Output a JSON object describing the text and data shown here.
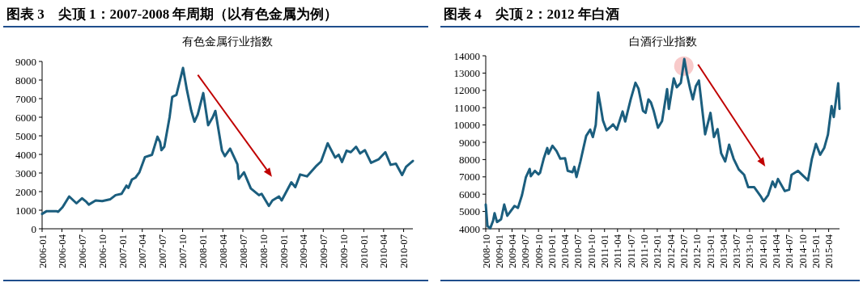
{
  "chart_data": [
    {
      "type": "line",
      "title": "图表 3　尖顶 1：2007-2008 年周期（以有色金属为例）",
      "subtitle": "有色金属行业指数",
      "x": [
        "2006-01-01",
        "2006-01-22",
        "2006-03-07",
        "2006-03-15",
        "2006-04-04",
        "2006-05-04",
        "2006-06-06",
        "2006-07-01",
        "2006-07-21",
        "2006-08-01",
        "2006-09-01",
        "2006-10-01",
        "2006-11-07",
        "2006-12-01",
        "2006-12-28",
        "2007-01-19",
        "2007-01-28",
        "2007-02-13",
        "2007-03-01",
        "2007-03-19",
        "2007-04-13",
        "2007-05-15",
        "2007-06-09",
        "2007-06-21",
        "2007-06-27",
        "2007-07-10",
        "2007-08-03",
        "2007-08-15",
        "2007-09-03",
        "2007-10-03",
        "2007-10-21",
        "2007-11-09",
        "2007-11-24",
        "2007-12-09",
        "2008-01-03",
        "2008-01-25",
        "2008-02-15",
        "2008-02-27",
        "2008-03-28",
        "2008-04-10",
        "2008-05-04",
        "2008-06-06",
        "2008-06-12",
        "2008-07-06",
        "2008-08-06",
        "2008-09-12",
        "2008-09-24",
        "2008-10-27",
        "2008-11-12",
        "2008-12-12",
        "2008-12-24",
        "2009-02-06",
        "2009-02-24",
        "2009-03-18",
        "2009-04-18",
        "2009-06-01",
        "2009-06-21",
        "2009-07-21",
        "2009-08-24",
        "2009-09-09",
        "2009-09-24",
        "2009-10-15",
        "2009-11-03",
        "2009-11-27",
        "2009-12-15",
        "2010-01-06",
        "2010-02-03",
        "2010-03-09",
        "2010-04-09",
        "2010-05-03",
        "2010-05-27",
        "2010-06-24",
        "2010-07-12",
        "2010-08-12"
      ],
      "series": [
        {
          "color": "#1b5e7e",
          "values": [
            800,
            950,
            950,
            910,
            1160,
            1740,
            1370,
            1640,
            1450,
            1300,
            1520,
            1490,
            1590,
            1810,
            1880,
            2320,
            2200,
            2650,
            2750,
            3040,
            3850,
            3980,
            4950,
            4660,
            4230,
            4410,
            6000,
            7090,
            7200,
            8650,
            7450,
            6370,
            5760,
            6150,
            7300,
            5570,
            6000,
            6340,
            4200,
            3910,
            4310,
            3470,
            2680,
            3040,
            2170,
            1810,
            1880,
            1230,
            1520,
            1740,
            1520,
            2500,
            2240,
            2920,
            2820,
            3400,
            3620,
            4600,
            3830,
            3980,
            3590,
            4200,
            4120,
            4410,
            4050,
            4230,
            3550,
            3730,
            4120,
            3440,
            3500,
            2890,
            3330,
            3650
          ]
        }
      ],
      "xlim": [
        "2006-01-01",
        "2010-08-12"
      ],
      "xticks": [
        "2006-01",
        "2006-04",
        "2006-07",
        "2006-10",
        "2007-01",
        "2007-04",
        "2007-07",
        "2007-10",
        "2008-01",
        "2008-04",
        "2008-07",
        "2008-10",
        "2009-01",
        "2009-04",
        "2009-07",
        "2009-10",
        "2010-01",
        "2010-04",
        "2010-07"
      ],
      "ylim": [
        0,
        9000
      ],
      "yticks": [
        0,
        1000,
        2000,
        3000,
        4000,
        5000,
        6000,
        7000,
        8000,
        9000
      ],
      "grid": false
    },
    {
      "type": "line",
      "title": "图表 4　尖顶 2：2012 年白酒",
      "subtitle": "白酒行业指数",
      "x": [
        "2008-10-01",
        "2008-10-13",
        "2008-11-01",
        "2008-11-21",
        "2008-12-01",
        "2008-12-18",
        "2009-01-15",
        "2009-02-06",
        "2009-02-27",
        "2009-04-18",
        "2009-05-12",
        "2009-06-09",
        "2009-07-06",
        "2009-08-01",
        "2009-08-09",
        "2009-09-06",
        "2009-10-01",
        "2009-10-12",
        "2009-11-06",
        "2009-12-01",
        "2009-12-09",
        "2010-01-06",
        "2010-02-03",
        "2010-03-01",
        "2010-04-03",
        "2010-04-21",
        "2010-05-24",
        "2010-06-06",
        "2010-06-21",
        "2010-07-18",
        "2010-08-06",
        "2010-08-27",
        "2010-09-24",
        "2010-10-12",
        "2010-11-01",
        "2010-11-18",
        "2010-12-03",
        "2010-12-21",
        "2011-01-15",
        "2011-02-12",
        "2011-03-01",
        "2011-03-27",
        "2011-05-06",
        "2011-05-24",
        "2011-07-01",
        "2011-08-03",
        "2011-08-24",
        "2011-09-24",
        "2011-10-12",
        "2011-11-01",
        "2011-11-18",
        "2011-12-06",
        "2012-01-06",
        "2012-02-03",
        "2012-03-09",
        "2012-03-21",
        "2012-04-24",
        "2012-05-15",
        "2012-06-12",
        "2012-07-06",
        "2012-07-24",
        "2012-08-15",
        "2012-09-03",
        "2012-09-24",
        "2012-10-15",
        "2012-11-27",
        "2013-01-03",
        "2013-01-27",
        "2013-02-21",
        "2013-03-18",
        "2013-04-15",
        "2013-05-12",
        "2013-06-12",
        "2013-07-18",
        "2013-08-24",
        "2013-09-21",
        "2013-11-01",
        "2013-12-15",
        "2014-01-06",
        "2014-02-06",
        "2014-03-09",
        "2014-03-27",
        "2014-04-15",
        "2014-06-01",
        "2014-07-01",
        "2014-07-18",
        "2014-09-01",
        "2014-10-09",
        "2014-11-09",
        "2014-12-06",
        "2015-01-03",
        "2015-02-01",
        "2015-03-01",
        "2015-03-27",
        "2015-04-21",
        "2015-05-06",
        "2015-05-21",
        "2015-06-06",
        "2015-06-15"
      ],
      "series": [
        {
          "color": "#1b5e7e",
          "values": [
            5400,
            4160,
            4030,
            4470,
            4900,
            4390,
            4550,
            5400,
            4750,
            5320,
            5210,
            5950,
            6990,
            7460,
            7040,
            7350,
            7150,
            7240,
            8050,
            8670,
            8330,
            8800,
            8490,
            8050,
            8080,
            7350,
            7270,
            7580,
            6990,
            7890,
            8600,
            9370,
            9730,
            9300,
            10000,
            11870,
            11170,
            10260,
            9690,
            9890,
            10040,
            9730,
            10780,
            10200,
            11480,
            12440,
            12100,
            10820,
            10700,
            11480,
            11300,
            10850,
            9840,
            10230,
            12070,
            10930,
            12690,
            12180,
            12440,
            13810,
            12950,
            12100,
            11480,
            12250,
            12570,
            9460,
            10700,
            9300,
            9760,
            8360,
            7890,
            8860,
            8050,
            7430,
            7120,
            6410,
            6410,
            5900,
            5590,
            5950,
            6730,
            6410,
            6880,
            6180,
            6260,
            7120,
            7350,
            7040,
            6800,
            8050,
            8910,
            8280,
            8670,
            9450,
            11090,
            10460,
            11400,
            12410,
            10930
          ]
        }
      ],
      "xlim": [
        "2008-10-01",
        "2015-06-15"
      ],
      "xticks": [
        "2008-10",
        "2009-01",
        "2009-04",
        "2009-07",
        "2009-10",
        "2010-01",
        "2010-04",
        "2010-07",
        "2010-10",
        "2011-01",
        "2011-04",
        "2011-07",
        "2011-10",
        "2012-01",
        "2012-04",
        "2012-07",
        "2012-10",
        "2013-01",
        "2013-04",
        "2013-07",
        "2013-10",
        "2014-01",
        "2014-04",
        "2014-07",
        "2014-10",
        "2015-01",
        "2015-04"
      ],
      "ylim": [
        4000,
        14000
      ],
      "yticks": [
        4000,
        5000,
        6000,
        7000,
        8000,
        9000,
        10000,
        11000,
        12000,
        13000,
        14000
      ],
      "grid": false
    }
  ]
}
